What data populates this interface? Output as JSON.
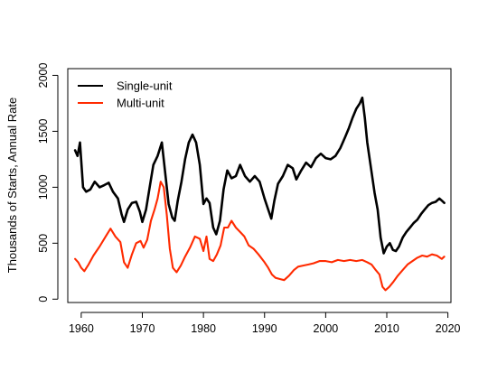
{
  "chart_data": {
    "type": "line",
    "title": "",
    "xlabel": "",
    "ylabel": "Thousands of Starts, Annual Rate",
    "xlim": [
      1957.8,
      2020.5
    ],
    "ylim": [
      -30,
      2060
    ],
    "xticks": [
      1960,
      1970,
      1980,
      1990,
      2000,
      2010,
      2020
    ],
    "yticks": [
      0,
      500,
      1000,
      1500,
      2000
    ],
    "grid": false,
    "legend_position": "top-left",
    "series": [
      {
        "name": "Single-unit",
        "color": "#000000",
        "x": [
          1959.0,
          1959.4,
          1959.8,
          1960.3,
          1960.8,
          1961.5,
          1962.2,
          1963.0,
          1963.8,
          1964.5,
          1965.2,
          1966.0,
          1966.6,
          1967.0,
          1967.6,
          1968.3,
          1969.0,
          1969.6,
          1970.0,
          1970.6,
          1971.2,
          1971.8,
          1972.5,
          1973.2,
          1973.8,
          1974.3,
          1974.9,
          1975.3,
          1975.8,
          1976.4,
          1977.0,
          1977.6,
          1978.2,
          1978.8,
          1979.4,
          1980.0,
          1980.5,
          1981.0,
          1981.6,
          1982.1,
          1982.7,
          1983.3,
          1983.9,
          1984.6,
          1985.3,
          1986.0,
          1986.8,
          1987.6,
          1988.4,
          1989.2,
          1990.0,
          1990.6,
          1991.1,
          1991.6,
          1992.2,
          1993.0,
          1993.8,
          1994.6,
          1995.2,
          1996.0,
          1996.8,
          1997.6,
          1998.4,
          1999.2,
          2000.0,
          2000.8,
          2001.6,
          2002.4,
          2003.2,
          2003.8,
          2004.4,
          2005.0,
          2005.6,
          2006.0,
          2006.4,
          2006.8,
          2007.2,
          2007.6,
          2008.0,
          2008.5,
          2009.0,
          2009.5,
          2010.0,
          2010.5,
          2011.0,
          2011.5,
          2012.0,
          2012.6,
          2013.2,
          2013.8,
          2014.4,
          2015.0,
          2015.6,
          2016.2,
          2016.8,
          2017.4,
          2018.0,
          2018.6,
          2019.0,
          2019.4
        ],
        "values": [
          1330,
          1280,
          1400,
          1000,
          960,
          980,
          1050,
          1000,
          1020,
          1040,
          960,
          900,
          760,
          690,
          800,
          860,
          870,
          780,
          690,
          800,
          1000,
          1200,
          1280,
          1400,
          1100,
          850,
          730,
          700,
          880,
          1050,
          1250,
          1400,
          1470,
          1400,
          1200,
          850,
          900,
          860,
          640,
          580,
          700,
          980,
          1150,
          1080,
          1100,
          1200,
          1100,
          1050,
          1100,
          1050,
          900,
          800,
          720,
          880,
          1030,
          1100,
          1200,
          1170,
          1070,
          1150,
          1220,
          1180,
          1260,
          1300,
          1260,
          1250,
          1280,
          1350,
          1450,
          1530,
          1620,
          1700,
          1750,
          1800,
          1620,
          1400,
          1250,
          1100,
          950,
          800,
          550,
          410,
          470,
          500,
          440,
          430,
          470,
          550,
          600,
          640,
          680,
          710,
          760,
          800,
          840,
          860,
          870,
          900,
          880,
          860
        ]
      },
      {
        "name": "Multi-unit",
        "color": "#ff2a00",
        "x": [
          1959.0,
          1959.5,
          1960.0,
          1960.5,
          1961.2,
          1962.0,
          1963.0,
          1964.0,
          1964.8,
          1965.6,
          1966.4,
          1967.0,
          1967.6,
          1968.3,
          1969.0,
          1969.7,
          1970.2,
          1970.8,
          1971.4,
          1972.0,
          1972.5,
          1973.0,
          1973.5,
          1974.0,
          1974.5,
          1975.0,
          1975.6,
          1976.3,
          1977.0,
          1977.8,
          1978.6,
          1979.4,
          1980.0,
          1980.5,
          1981.0,
          1981.6,
          1982.2,
          1982.8,
          1983.4,
          1984.0,
          1984.6,
          1985.3,
          1986.0,
          1986.7,
          1987.4,
          1988.2,
          1989.0,
          1990.0,
          1990.6,
          1991.2,
          1991.8,
          1992.5,
          1993.2,
          1994.0,
          1994.8,
          1995.5,
          1996.3,
          1997.2,
          1998.0,
          1999.0,
          2000.0,
          2001.0,
          2002.0,
          2003.0,
          2004.0,
          2005.0,
          2006.0,
          2006.8,
          2007.5,
          2008.2,
          2008.8,
          2009.3,
          2009.8,
          2010.4,
          2011.0,
          2011.8,
          2012.6,
          2013.4,
          2014.2,
          2015.0,
          2015.8,
          2016.6,
          2017.4,
          2018.2,
          2019.0,
          2019.4
        ],
        "values": [
          360,
          330,
          280,
          250,
          310,
          390,
          470,
          560,
          630,
          560,
          510,
          330,
          280,
          400,
          500,
          520,
          460,
          530,
          700,
          800,
          900,
          1050,
          1000,
          750,
          450,
          280,
          240,
          300,
          380,
          460,
          560,
          540,
          430,
          560,
          360,
          340,
          400,
          480,
          640,
          640,
          700,
          640,
          600,
          560,
          480,
          450,
          400,
          330,
          280,
          220,
          190,
          180,
          170,
          210,
          260,
          290,
          300,
          310,
          320,
          340,
          340,
          330,
          350,
          340,
          350,
          340,
          350,
          330,
          310,
          260,
          220,
          110,
          80,
          110,
          150,
          210,
          260,
          310,
          340,
          370,
          390,
          380,
          400,
          390,
          360,
          380
        ]
      }
    ]
  }
}
